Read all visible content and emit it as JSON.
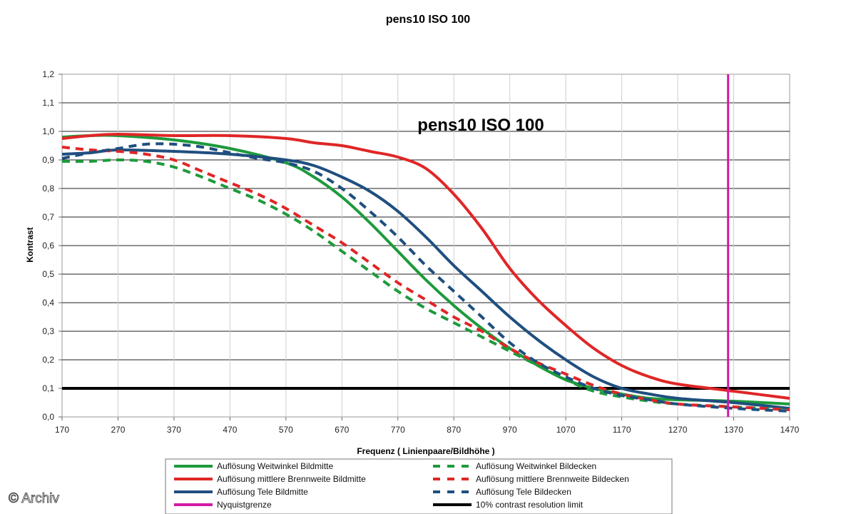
{
  "chart_data": {
    "type": "line",
    "title": "pens10 ISO 100",
    "inner_title": "pens10 ISO 100",
    "xlabel": "Frequenz ( Linienpaare/Bildhöhe )",
    "ylabel": "Kontrast",
    "xlim": [
      170,
      1470
    ],
    "ylim": [
      0,
      1.2
    ],
    "xticks": [
      170,
      270,
      370,
      470,
      570,
      670,
      770,
      870,
      970,
      1070,
      1170,
      1270,
      1370,
      1470
    ],
    "xtick_labels": [
      "170",
      "270",
      "370",
      "470",
      "570",
      "670",
      "770",
      "870",
      "970",
      "1070",
      "1170",
      "1270",
      "1370",
      "1470"
    ],
    "yticks": [
      0,
      0.1,
      0.2,
      0.3,
      0.4,
      0.5,
      0.6,
      0.7,
      0.8,
      0.9,
      1.0,
      1.1,
      1.2
    ],
    "ytick_labels": [
      "0,0",
      "0,1",
      "0,2",
      "0,3",
      "0,4",
      "0,5",
      "0,6",
      "0,7",
      "0,8",
      "0,9",
      "1,0",
      "1,1",
      "1,2"
    ],
    "grid": "horizontal",
    "legend_placement": "bottom",
    "series": [
      {
        "name": "Auflösung Weitwinkel Bildmitte",
        "color": "#1e9a3c",
        "dash": "solid",
        "x": [
          170,
          220,
          270,
          370,
          470,
          570,
          620,
          670,
          720,
          770,
          820,
          870,
          920,
          970,
          1020,
          1070,
          1120,
          1170,
          1220,
          1270,
          1370,
          1470
        ],
        "y": [
          0.98,
          0.985,
          0.985,
          0.97,
          0.94,
          0.89,
          0.84,
          0.77,
          0.68,
          0.58,
          0.48,
          0.39,
          0.31,
          0.24,
          0.18,
          0.13,
          0.1,
          0.08,
          0.065,
          0.06,
          0.055,
          0.045
        ]
      },
      {
        "name": "Auflösung mittlere Brennweite Bildmitte",
        "color": "#e02626",
        "dash": "solid",
        "x": [
          170,
          220,
          270,
          370,
          470,
          570,
          620,
          670,
          720,
          770,
          820,
          870,
          920,
          970,
          1020,
          1070,
          1120,
          1170,
          1220,
          1270,
          1370,
          1470
        ],
        "y": [
          0.975,
          0.985,
          0.99,
          0.985,
          0.985,
          0.975,
          0.96,
          0.95,
          0.93,
          0.91,
          0.87,
          0.78,
          0.66,
          0.52,
          0.41,
          0.32,
          0.24,
          0.18,
          0.14,
          0.115,
          0.09,
          0.065
        ]
      },
      {
        "name": "Auflösung Tele Bildmitte",
        "color": "#1f4f7f",
        "dash": "solid",
        "x": [
          170,
          220,
          270,
          370,
          470,
          570,
          620,
          670,
          720,
          770,
          820,
          870,
          920,
          970,
          1020,
          1070,
          1120,
          1170,
          1220,
          1270,
          1370,
          1470
        ],
        "y": [
          0.92,
          0.925,
          0.935,
          0.93,
          0.92,
          0.9,
          0.88,
          0.84,
          0.79,
          0.72,
          0.63,
          0.53,
          0.44,
          0.35,
          0.27,
          0.2,
          0.14,
          0.1,
          0.08,
          0.065,
          0.05,
          0.03
        ]
      },
      {
        "name": "Auflösung Weitwinkel Bildecken",
        "color": "#1e9a3c",
        "dash": "dashed",
        "x": [
          170,
          220,
          270,
          320,
          370,
          420,
          470,
          520,
          570,
          620,
          670,
          720,
          770,
          820,
          870,
          920,
          970,
          1020,
          1070,
          1120,
          1170,
          1220,
          1270,
          1370,
          1470
        ],
        "y": [
          0.895,
          0.895,
          0.9,
          0.895,
          0.875,
          0.84,
          0.8,
          0.76,
          0.71,
          0.65,
          0.58,
          0.51,
          0.44,
          0.38,
          0.33,
          0.28,
          0.23,
          0.18,
          0.13,
          0.09,
          0.07,
          0.055,
          0.045,
          0.035,
          0.025
        ]
      },
      {
        "name": "Auflösung mittlere Brennweite Bildecken",
        "color": "#e02626",
        "dash": "dashed",
        "x": [
          170,
          220,
          270,
          320,
          370,
          420,
          470,
          520,
          570,
          620,
          670,
          720,
          770,
          820,
          870,
          920,
          970,
          1020,
          1070,
          1120,
          1170,
          1220,
          1270,
          1370,
          1470
        ],
        "y": [
          0.945,
          0.935,
          0.93,
          0.92,
          0.9,
          0.86,
          0.82,
          0.78,
          0.73,
          0.67,
          0.61,
          0.54,
          0.47,
          0.41,
          0.35,
          0.3,
          0.24,
          0.19,
          0.15,
          0.11,
          0.08,
          0.06,
          0.045,
          0.035,
          0.025
        ]
      },
      {
        "name": "Auflösung Tele Bildecken",
        "color": "#1f4f7f",
        "dash": "dashed",
        "x": [
          170,
          220,
          270,
          320,
          370,
          420,
          470,
          520,
          570,
          620,
          670,
          720,
          770,
          820,
          870,
          920,
          970,
          1020,
          1070,
          1120,
          1170,
          1220,
          1270,
          1370,
          1470
        ],
        "y": [
          0.905,
          0.925,
          0.94,
          0.955,
          0.955,
          0.945,
          0.925,
          0.905,
          0.89,
          0.86,
          0.8,
          0.72,
          0.63,
          0.53,
          0.44,
          0.35,
          0.26,
          0.19,
          0.14,
          0.1,
          0.075,
          0.06,
          0.045,
          0.03,
          0.02
        ]
      }
    ],
    "reference_lines": [
      {
        "name": "Nyquistgrenze",
        "orientation": "vertical",
        "x": 1360,
        "color": "#d41aa5"
      },
      {
        "name": "10% contrast resolution limit",
        "orientation": "horizontal",
        "y": 0.1,
        "color": "#000000"
      }
    ]
  },
  "watermark": "© Archiv"
}
